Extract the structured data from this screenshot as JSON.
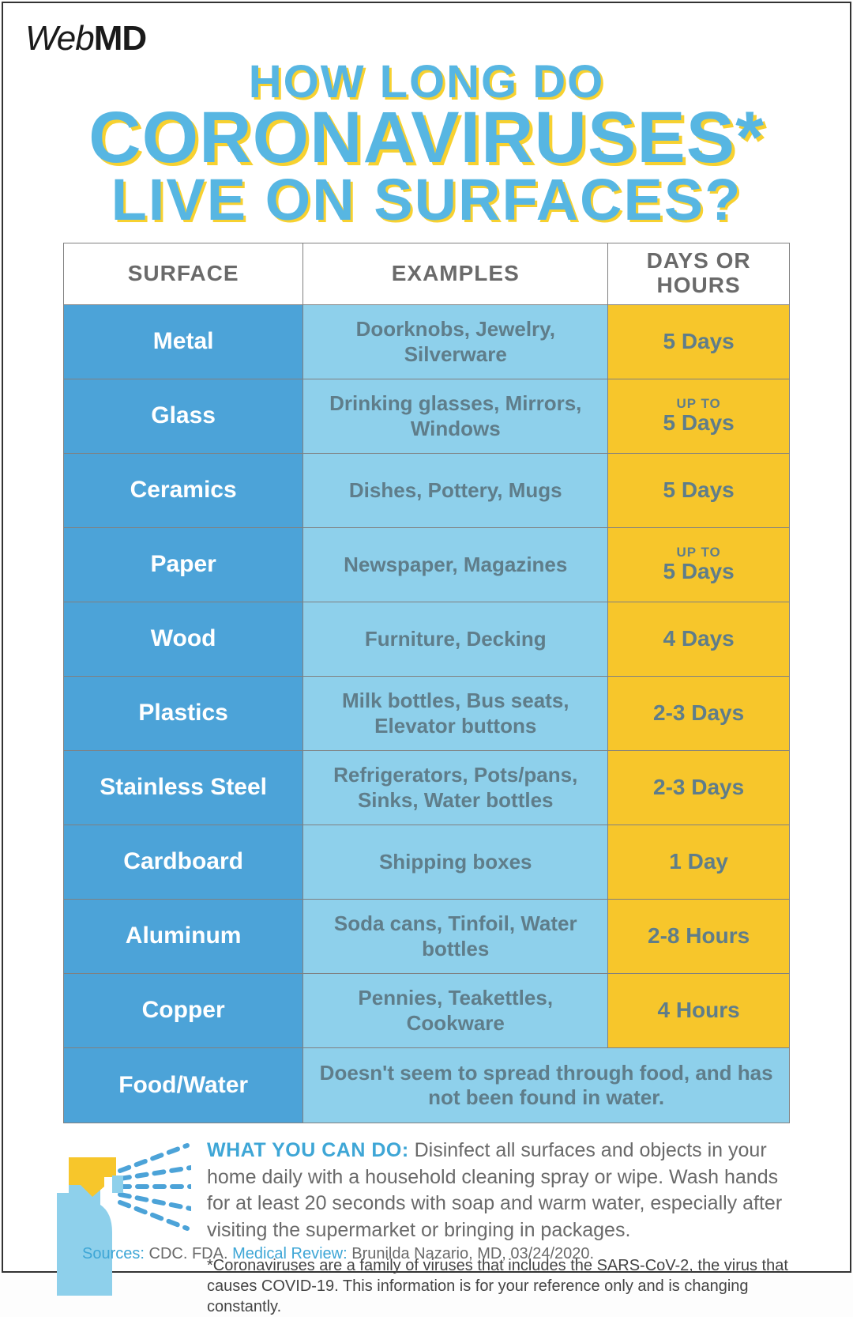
{
  "logo": {
    "part1": "Web",
    "part2": "MD"
  },
  "headline": {
    "line1": "HOW LONG DO",
    "line2": "CORONAVIRUSES*",
    "line3": "LIVE ON SURFACES?",
    "text_color": "#57b6e2",
    "shadow_color": "#f7d130"
  },
  "table": {
    "columns": [
      "SURFACE",
      "EXAMPLES",
      "DAYS OR HOURS"
    ],
    "header_bg": "#ffffff",
    "header_text_color": "#6a6a6a",
    "col_widths_pct": [
      33,
      42,
      25
    ],
    "col1_bg": "#4ca3d8",
    "col2_bg": "#8ed0eb",
    "col3_bg": "#f7c62b",
    "col1_text_color": "#ffffff",
    "col2_text_color": "#5f7d8a",
    "col3_text_color": "#5f7d8a",
    "border_color": "#808080",
    "rows": [
      {
        "surface": "Metal",
        "examples": "Doorknobs, Jewelry, Silverware",
        "duration": "5 Days"
      },
      {
        "surface": "Glass",
        "examples": "Drinking glasses, Mirrors, Windows",
        "duration_prefix": "UP TO",
        "duration": "5 Days"
      },
      {
        "surface": "Ceramics",
        "examples": "Dishes, Pottery, Mugs",
        "duration": "5 Days"
      },
      {
        "surface": "Paper",
        "examples": "Newspaper, Magazines",
        "duration_prefix": "UP TO",
        "duration": "5 Days"
      },
      {
        "surface": "Wood",
        "examples": "Furniture, Decking",
        "duration": "4 Days"
      },
      {
        "surface": "Plastics",
        "examples": "Milk bottles, Bus seats, Elevator buttons",
        "duration": "2-3 Days"
      },
      {
        "surface": "Stainless Steel",
        "examples": "Refrigerators, Pots/pans, Sinks, Water bottles",
        "duration": "2-3 Days"
      },
      {
        "surface": "Cardboard",
        "examples": "Shipping boxes",
        "duration": "1 Day"
      },
      {
        "surface": "Aluminum",
        "examples": "Soda cans, Tinfoil, Water bottles",
        "duration": "2-8 Hours"
      },
      {
        "surface": "Copper",
        "examples": "Pennies, Teakettles, Cookware",
        "duration": "4 Hours"
      }
    ],
    "food_row": {
      "surface": "Food/Water",
      "note": "Doesn't seem to spread through food, and has not been found in water."
    }
  },
  "advice": {
    "lead": "WHAT YOU CAN DO:",
    "body": " Disinfect all surfaces and objects in your home daily with a household cleaning spray or wipe. Wash hands for at least 20 seconds with soap and warm water, especially after visiting the supermarket or bringing in packages.",
    "lead_color": "#3ea6d6",
    "body_color": "#6a6a6a"
  },
  "footnote": "*Coronaviruses are a family of viruses that includes the SARS-CoV-2, the virus that causes COVID-19. This information is for your reference only and is changing constantly.",
  "sources": {
    "label1": "Sources:",
    "text1": " CDC. FDA. ",
    "label2": "Medical Review:",
    "text2": " Brunilda Nazario, MD, 03/24/2020.",
    "label_color": "#3ea6d6"
  },
  "spray_icon": {
    "bottle_color": "#8ed0eb",
    "trigger_color": "#f7c62b",
    "mist_color": "#4ca3d8"
  }
}
